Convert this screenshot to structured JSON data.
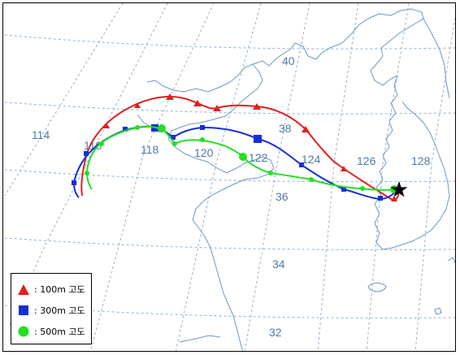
{
  "map": {
    "grid_labels": {
      "lon": [
        "114",
        "116",
        "118",
        "120",
        "122",
        "124",
        "126",
        "128"
      ],
      "lat": [
        "40",
        "38",
        "36",
        "34",
        "32"
      ]
    },
    "start_marker": "star-icon",
    "colors": {
      "coast": "#6c97c4",
      "grid": "#8fb0cf",
      "t100": "#e02020",
      "t300": "#1530d8",
      "t500": "#22e022"
    }
  },
  "legend": {
    "items": [
      {
        "label": ": 100m 고도",
        "icon": "triangle-icon",
        "color": "#e02020"
      },
      {
        "label": ": 300m 고도",
        "icon": "square-icon",
        "color": "#1530d8"
      },
      {
        "label": ": 500m 고도",
        "icon": "circle-icon",
        "color": "#22e022"
      }
    ]
  }
}
